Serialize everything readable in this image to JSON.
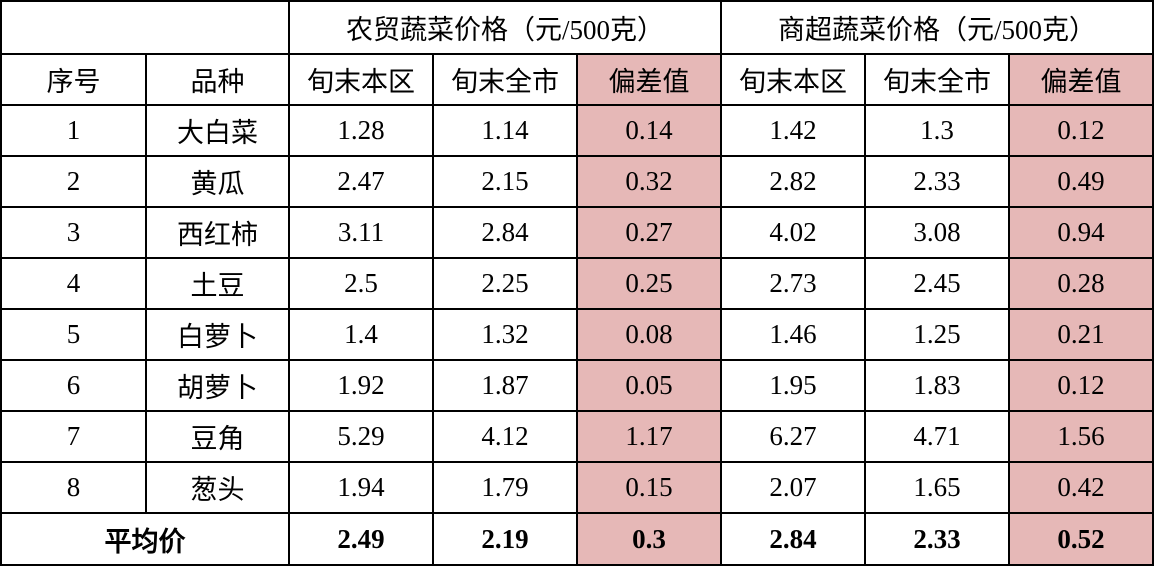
{
  "header": {
    "groups": [
      "农贸蔬菜价格（元/500克）",
      "商超蔬菜价格（元/500克）"
    ],
    "columns": [
      "序号",
      "品种",
      "旬末本区",
      "旬末全市",
      "偏差值",
      "旬末本区",
      "旬末全市",
      "偏差值"
    ]
  },
  "table": {
    "rows": [
      [
        1,
        "大白菜",
        1.28,
        1.14,
        0.14,
        1.42,
        1.3,
        0.12
      ],
      [
        2,
        "黄瓜",
        2.47,
        2.15,
        0.32,
        2.82,
        2.33,
        0.49
      ],
      [
        3,
        "西红柿",
        3.11,
        2.84,
        0.27,
        4.02,
        3.08,
        0.94
      ],
      [
        4,
        "土豆",
        2.5,
        2.25,
        0.25,
        2.73,
        2.45,
        0.28
      ],
      [
        5,
        "白萝卜",
        1.4,
        1.32,
        0.08,
        1.46,
        1.25,
        0.21
      ],
      [
        6,
        "胡萝卜",
        1.92,
        1.87,
        0.05,
        1.95,
        1.83,
        0.12
      ],
      [
        7,
        "豆角",
        5.29,
        4.12,
        1.17,
        6.27,
        4.71,
        1.56
      ],
      [
        8,
        "葱头",
        1.94,
        1.79,
        0.15,
        2.07,
        1.65,
        0.42
      ]
    ]
  },
  "average": {
    "label": "平均价",
    "values": [
      2.49,
      2.19,
      0.3,
      2.84,
      2.33,
      0.52
    ]
  }
}
